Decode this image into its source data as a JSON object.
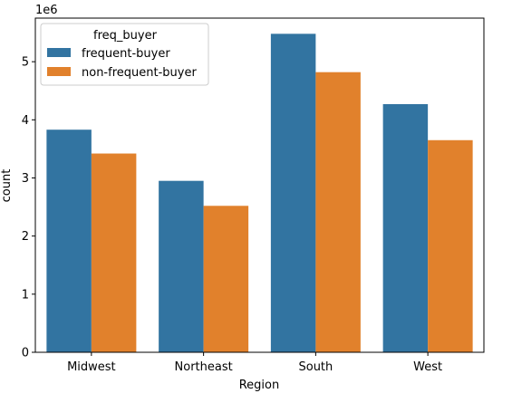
{
  "chart_data": {
    "type": "bar",
    "title": "",
    "xlabel": "Region",
    "ylabel": "count",
    "offset_label": "1e6",
    "categories": [
      "Midwest",
      "Northeast",
      "South",
      "West"
    ],
    "ylim": [
      0,
      5750000
    ],
    "yticks": [
      0,
      1000000,
      2000000,
      3000000,
      4000000,
      5000000
    ],
    "ytick_labels": [
      "0",
      "1",
      "2",
      "3",
      "4",
      "5"
    ],
    "grid": false,
    "legend": {
      "title": "freq_buyer",
      "placement": "top-left"
    },
    "series": [
      {
        "name": "frequent-buyer",
        "color": "#3274a1",
        "values": [
          3830000,
          2950000,
          5480000,
          4270000
        ]
      },
      {
        "name": "non-frequent-buyer",
        "color": "#e1812c",
        "values": [
          3420000,
          2520000,
          4820000,
          3650000
        ]
      }
    ]
  }
}
